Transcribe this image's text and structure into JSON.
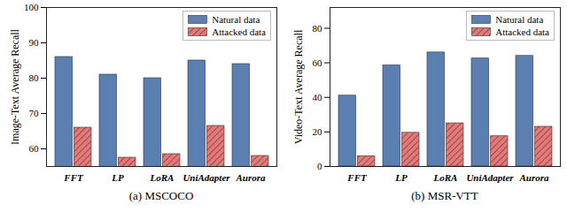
{
  "chart_data": [
    {
      "type": "bar",
      "title": "(a) MSCOCO",
      "ylabel": "Image-Text Average Recall",
      "categories": [
        "FFT",
        "LP",
        "LoRA",
        "UniAdapter",
        "Aurora"
      ],
      "series": [
        {
          "name": "Natural data",
          "color": "#5b7fb0",
          "values": [
            86,
            81,
            80,
            85,
            84
          ]
        },
        {
          "name": "Attacked data",
          "color": "#e07b7b",
          "values": [
            66,
            57.5,
            58.5,
            66.5,
            58
          ]
        }
      ],
      "ylim": [
        55,
        100
      ],
      "yticks": [
        60,
        70,
        80,
        90,
        100
      ],
      "legend": "top-right"
    },
    {
      "type": "bar",
      "title": "(b) MSR-VTT",
      "ylabel": "Video-Text Average Recall",
      "categories": [
        "FFT",
        "LP",
        "LoRA",
        "UniAdapter",
        "Aurora"
      ],
      "series": [
        {
          "name": "Natural data",
          "color": "#5b7fb0",
          "values": [
            41,
            58.5,
            66,
            62.5,
            64
          ]
        },
        {
          "name": "Attacked data",
          "color": "#e07b7b",
          "values": [
            6,
            19.5,
            25,
            17.5,
            23
          ]
        }
      ],
      "ylim": [
        0,
        92
      ],
      "yticks": [
        0,
        20,
        40,
        60,
        80
      ],
      "legend": "top-right"
    }
  ]
}
